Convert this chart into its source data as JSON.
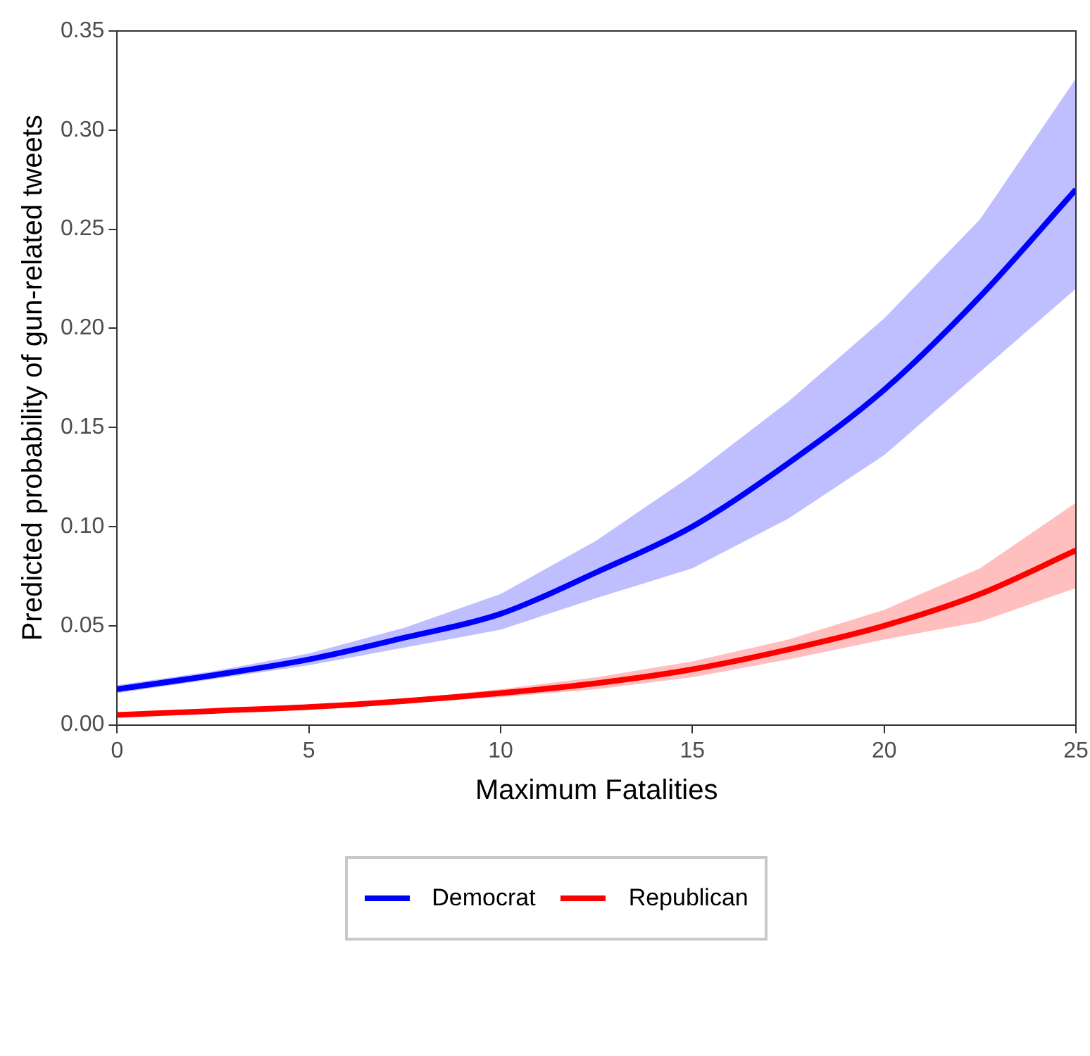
{
  "chart_data": {
    "type": "line",
    "xlabel": "Maximum Fatalities",
    "ylabel": "Predicted probability of gun-related tweets",
    "x": [
      0,
      2.5,
      5,
      7.5,
      10,
      12.5,
      15,
      17.5,
      20,
      22.5,
      25
    ],
    "xlim": [
      0,
      25
    ],
    "xticks": [
      0,
      5,
      10,
      15,
      20,
      25
    ],
    "ylim": [
      0,
      0.35
    ],
    "yticks": [
      {
        "value": 0,
        "label": "0.00"
      },
      0.05,
      {
        "value": 0.1,
        "label": "0.10"
      },
      0.15,
      {
        "value": 0.2,
        "label": "0.20"
      },
      0.25,
      {
        "value": 0.3,
        "label": "0.30"
      },
      0.35
    ],
    "grid": false,
    "legend": "bottom",
    "marker": "none",
    "line_style": "solid",
    "series": [
      {
        "name": "Democrat",
        "color": "#0000ff",
        "values": [
          0.018,
          0.025,
          0.033,
          0.044,
          0.056,
          0.077,
          0.1,
          0.132,
          0.169,
          0.216,
          0.27
        ],
        "lower": [
          0.016,
          0.023,
          0.03,
          0.039,
          0.048,
          0.064,
          0.079,
          0.104,
          0.136,
          0.178,
          0.22
        ],
        "upper": [
          0.02,
          0.027,
          0.036,
          0.049,
          0.066,
          0.093,
          0.126,
          0.163,
          0.205,
          0.255,
          0.326
        ]
      },
      {
        "name": "Republican",
        "color": "#ff0000",
        "values": [
          0.005,
          0.007,
          0.009,
          0.012,
          0.016,
          0.021,
          0.028,
          0.038,
          0.05,
          0.066,
          0.088
        ],
        "lower": [
          0.004,
          0.006,
          0.008,
          0.011,
          0.014,
          0.018,
          0.024,
          0.033,
          0.043,
          0.052,
          0.069
        ],
        "upper": [
          0.006,
          0.008,
          0.01,
          0.013,
          0.018,
          0.024,
          0.032,
          0.043,
          0.058,
          0.079,
          0.112
        ]
      }
    ]
  }
}
